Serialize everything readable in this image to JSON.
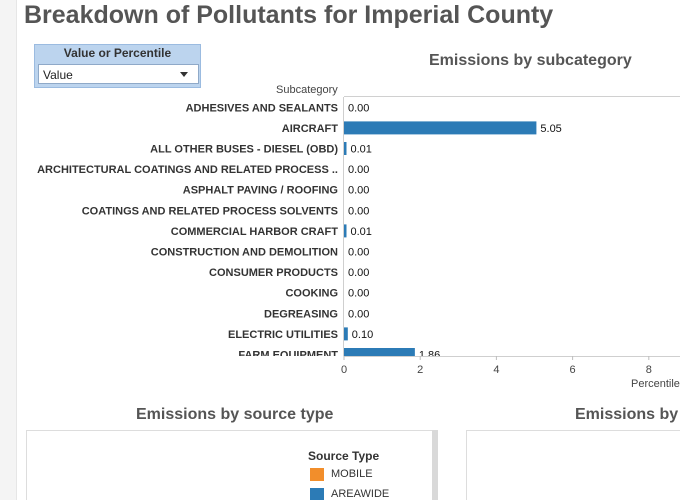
{
  "page": {
    "title": "Breakdown of Pollutants for Imperial County"
  },
  "parameter": {
    "label": "Value or Percentile",
    "selected": "Value"
  },
  "subcategory_chart": {
    "title": "Emissions by subcategory",
    "row_header": "Subcategory",
    "x_axis_label": "Percentile",
    "bar_color": "#2c7bb6"
  },
  "source_type_chart": {
    "title": "Emissions by source type",
    "legend_title": "Source Type",
    "legend": [
      {
        "label": "MOBILE",
        "color": "#f28e2b"
      },
      {
        "label": "AREAWIDE",
        "color": "#2c7bb6"
      }
    ]
  },
  "third_chart": {
    "title": "Emissions by c"
  },
  "chart_data": {
    "type": "bar",
    "orientation": "horizontal",
    "title": "Emissions by subcategory",
    "ylabel": "Subcategory",
    "xlabel": "Percentile",
    "categories": [
      "ADHESIVES AND SEALANTS",
      "AIRCRAFT",
      "ALL OTHER BUSES - DIESEL (OBD)",
      "ARCHITECTURAL COATINGS AND RELATED PROCESS ..",
      "ASPHALT PAVING / ROOFING",
      "COATINGS AND RELATED PROCESS SOLVENTS",
      "COMMERCIAL HARBOR CRAFT",
      "CONSTRUCTION AND DEMOLITION",
      "CONSUMER PRODUCTS",
      "COOKING",
      "DEGREASING",
      "ELECTRIC UTILITIES",
      "FARM EQUIPMENT"
    ],
    "values": [
      0.0,
      5.05,
      0.01,
      0.0,
      0.0,
      0.0,
      0.01,
      0.0,
      0.0,
      0.0,
      0.0,
      0.1,
      1.86
    ],
    "value_labels": [
      "0.00",
      "5.05",
      "0.01",
      "0.00",
      "0.00",
      "0.00",
      "0.01",
      "0.00",
      "0.00",
      "0.00",
      "0.00",
      "0.10",
      "1.86"
    ],
    "xticks": [
      0,
      2,
      4,
      6,
      8
    ],
    "xlim": [
      0,
      8.8
    ],
    "grid": false
  }
}
